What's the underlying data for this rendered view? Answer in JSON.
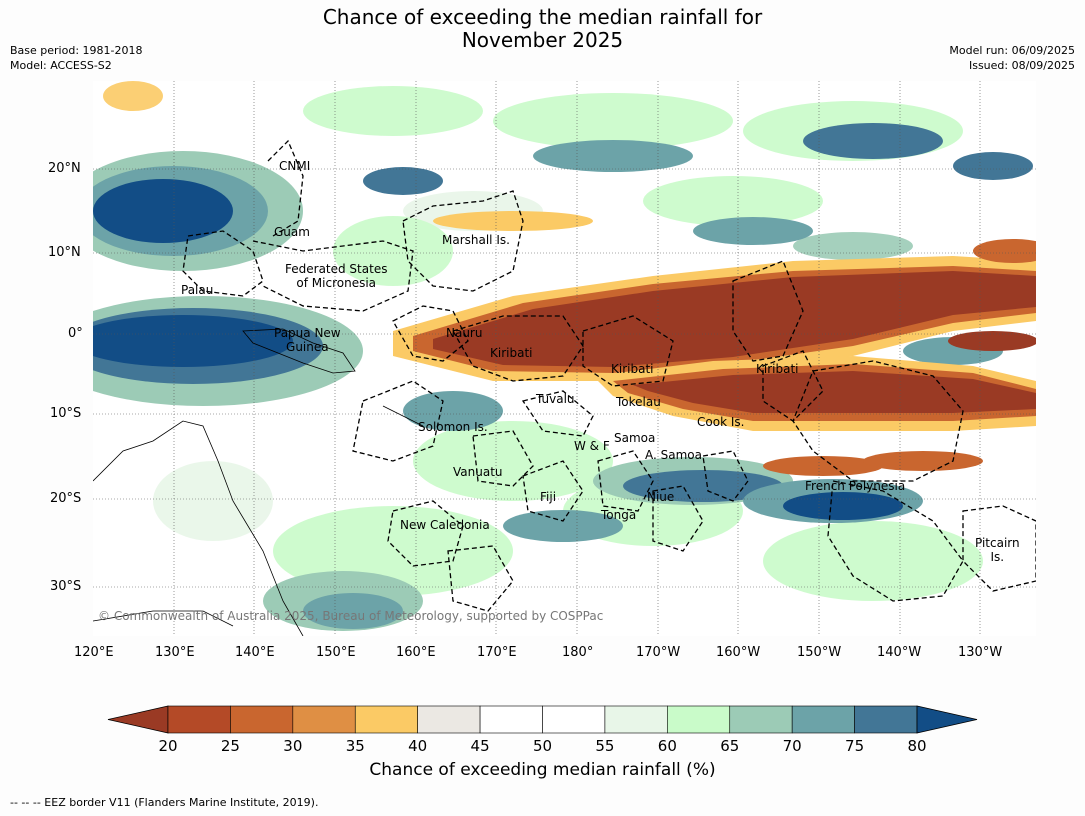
{
  "title_line1": "Chance of exceeding the median rainfall for",
  "title_line2": "November 2025",
  "meta_left": [
    "Base period: 1981-2018",
    "Model: ACCESS-S2"
  ],
  "meta_right": [
    "Model run: 06/09/2025",
    "Issued: 08/09/2025"
  ],
  "copyright": "© Commonwealth of Australia 2025, Bureau of Meteorology, supported by COSPPac",
  "footer": "-- -- -- EEZ border V11 (Flanders Marine Institute, 2019).",
  "longitude_labels": [
    "120°E",
    "130°E",
    "140°E",
    "150°E",
    "160°E",
    "170°E",
    "180°",
    "170°W",
    "160°W",
    "150°W",
    "140°W",
    "130°W"
  ],
  "latitude_labels": [
    "20°N",
    "10°N",
    "0°",
    "10°S",
    "20°S",
    "30°S"
  ],
  "colorbar": {
    "title": "Chance of exceeding median rainfall (%)",
    "ticks": [
      "20",
      "25",
      "30",
      "35",
      "40",
      "45",
      "50",
      "55",
      "60",
      "65",
      "70",
      "75",
      "80"
    ],
    "colors": [
      "#9a3a24",
      "#b44a27",
      "#c9662f",
      "#df8f44",
      "#fbca65",
      "#ebe8e3",
      "#ffffff",
      "#ffffff",
      "#e8f6e8",
      "#c9fbc9",
      "#9ccbb6",
      "#6ca3a8",
      "#427696",
      "#124d86"
    ]
  },
  "places": [
    {
      "name": "CNMI",
      "lines": [
        "CNMI"
      ]
    },
    {
      "name": "Guam",
      "lines": [
        "Guam"
      ]
    },
    {
      "name": "Marshall Is.",
      "lines": [
        "Marshall Is."
      ]
    },
    {
      "name": "Federated States of Micronesia",
      "lines": [
        "Federated States",
        "of Micronesia"
      ]
    },
    {
      "name": "Palau",
      "lines": [
        "Palau"
      ]
    },
    {
      "name": "Nauru",
      "lines": [
        "Nauru"
      ]
    },
    {
      "name": "Papua New Guinea",
      "lines": [
        "Papua New",
        "Guinea"
      ]
    },
    {
      "name": "Kiribati west",
      "lines": [
        "Kiribati"
      ]
    },
    {
      "name": "Kiribati central",
      "lines": [
        "Kiribati"
      ]
    },
    {
      "name": "Kiribati east",
      "lines": [
        "Kiribati"
      ]
    },
    {
      "name": "Tuvalu",
      "lines": [
        "Tuvalu"
      ]
    },
    {
      "name": "Tokelau",
      "lines": [
        "Tokelau"
      ]
    },
    {
      "name": "Cook Is.",
      "lines": [
        "Cook Is."
      ]
    },
    {
      "name": "Solomon Is.",
      "lines": [
        "Solomon Is."
      ]
    },
    {
      "name": "Samoa",
      "lines": [
        "Samoa"
      ]
    },
    {
      "name": "W & F",
      "lines": [
        "W & F"
      ]
    },
    {
      "name": "A. Samoa",
      "lines": [
        "A. Samoa"
      ]
    },
    {
      "name": "Vanuatu",
      "lines": [
        "Vanuatu"
      ]
    },
    {
      "name": "Fiji",
      "lines": [
        "Fiji"
      ]
    },
    {
      "name": "Niue",
      "lines": [
        "Niue"
      ]
    },
    {
      "name": "French Polynesia",
      "lines": [
        "French Polynesia"
      ]
    },
    {
      "name": "Tonga",
      "lines": [
        "Tonga"
      ]
    },
    {
      "name": "New Caledonia",
      "lines": [
        "New Caledonia"
      ]
    },
    {
      "name": "Pitcairn Is.",
      "lines": [
        "Pitcairn",
        "Is."
      ]
    }
  ]
}
